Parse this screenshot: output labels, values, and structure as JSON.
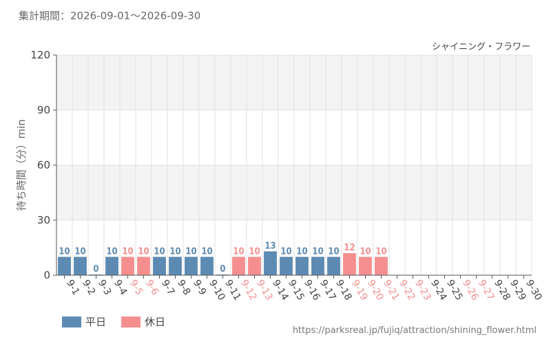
{
  "period_label": "集計期間：2026-09-01～2026-09-30",
  "source_url": "https://parksreal.jp/fujiq/attraction/shining_flower.html",
  "colors": {
    "weekday": "#5d8ab2",
    "holiday": "#f58f8f",
    "axis": "#555555",
    "grid": "#e0e0e0",
    "band": "#f3f3f3"
  },
  "legend": [
    {
      "label": "平日",
      "kind": "weekday"
    },
    {
      "label": "休日",
      "kind": "holiday"
    }
  ],
  "chart_data": {
    "type": "bar",
    "title": "シャイニング・フラワー",
    "ylabel": "待ち時間（分）min",
    "xlabel": "",
    "ylim": [
      0,
      120
    ],
    "yticks": [
      0,
      30,
      60,
      90,
      120
    ],
    "categories": [
      "9-1",
      "9-2",
      "9-3",
      "9-4",
      "9-5",
      "9-6",
      "9-7",
      "9-8",
      "9-9",
      "9-10",
      "9-11",
      "9-12",
      "9-13",
      "9-14",
      "9-15",
      "9-16",
      "9-17",
      "9-18",
      "9-19",
      "9-20",
      "9-21",
      "9-22",
      "9-23",
      "9-24",
      "9-25",
      "9-26",
      "9-27",
      "9-28",
      "9-29",
      "9-30"
    ],
    "values": [
      10,
      10,
      0,
      10,
      10,
      10,
      10,
      10,
      10,
      10,
      0,
      10,
      10,
      13,
      10,
      10,
      10,
      10,
      12,
      10,
      10,
      null,
      null,
      null,
      null,
      null,
      null,
      null,
      null,
      null
    ],
    "day_types": [
      "weekday",
      "weekday",
      "weekday",
      "weekday",
      "holiday",
      "holiday",
      "weekday",
      "weekday",
      "weekday",
      "weekday",
      "weekday",
      "holiday",
      "holiday",
      "weekday",
      "weekday",
      "weekday",
      "weekday",
      "weekday",
      "holiday",
      "holiday",
      "holiday",
      "holiday",
      "holiday",
      "weekday",
      "weekday",
      "holiday",
      "holiday",
      "weekday",
      "weekday",
      "weekday"
    ],
    "grid": true,
    "legend_position": "bottom-left"
  }
}
